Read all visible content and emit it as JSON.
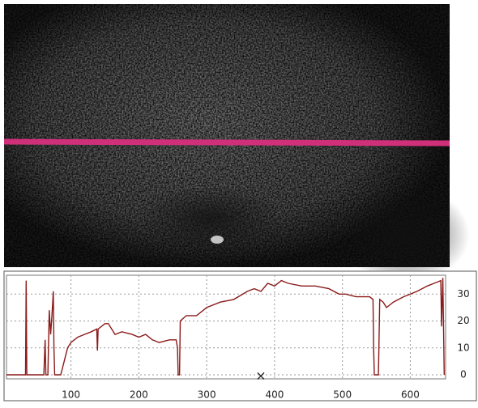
{
  "chart_data": {
    "type": "line",
    "color": "#8b1a1a",
    "grid": true,
    "x": [
      5,
      33,
      34,
      35,
      60,
      62,
      63,
      66,
      68,
      70,
      72,
      74,
      75,
      76,
      85,
      90,
      95,
      100,
      110,
      120,
      130,
      138,
      139,
      140,
      150,
      155,
      165,
      175,
      190,
      200,
      210,
      220,
      230,
      245,
      255,
      257,
      258,
      260,
      261,
      270,
      285,
      300,
      320,
      340,
      360,
      370,
      380,
      390,
      400,
      410,
      420,
      440,
      460,
      480,
      495,
      505,
      520,
      540,
      545,
      546,
      547,
      553,
      555,
      560,
      565,
      575,
      590,
      610,
      625,
      635,
      645,
      646,
      648,
      650
    ],
    "values": [
      0,
      0,
      35,
      0,
      0,
      13,
      0,
      0,
      24,
      15,
      22,
      31,
      10,
      0,
      0,
      5,
      10,
      12,
      14,
      15,
      16,
      17,
      9,
      17,
      19,
      19,
      15,
      16,
      15,
      14,
      15,
      13,
      12,
      13,
      13,
      10,
      0,
      0,
      20,
      22,
      22,
      25,
      27,
      28,
      31,
      32,
      31,
      34,
      33,
      35,
      34,
      33,
      33,
      32,
      30,
      30,
      29,
      29,
      28,
      10,
      0,
      0,
      28,
      27,
      25,
      27,
      29,
      31,
      33,
      34,
      35,
      18,
      36,
      0
    ],
    "xlim": [
      5,
      652
    ],
    "ylim": [
      -1.5,
      37
    ],
    "xticks": [
      100,
      200,
      300,
      400,
      500,
      600
    ],
    "yticks": [
      0,
      10,
      20,
      30
    ]
  }
}
